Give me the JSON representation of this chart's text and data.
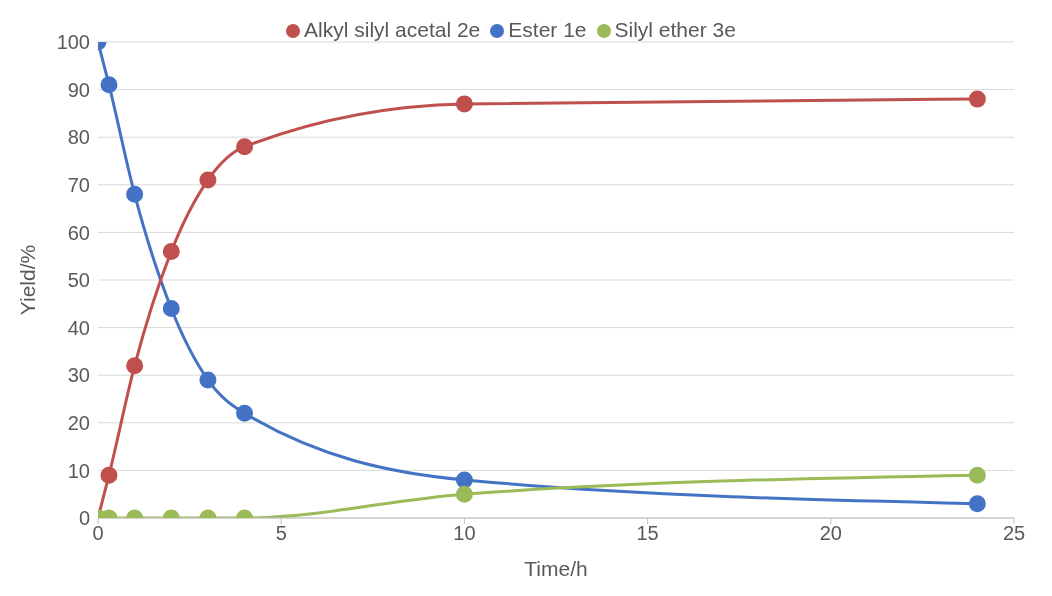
{
  "chart_data": {
    "type": "line",
    "xlabel": "Time/h",
    "ylabel": "Yield/%",
    "x": [
      0,
      0.3,
      1,
      2,
      3,
      4,
      10,
      24
    ],
    "series": [
      {
        "name": "Ester 1e",
        "color": "#4472c4",
        "values": [
          100,
          91,
          68,
          44,
          29,
          22,
          8,
          3
        ]
      },
      {
        "name": "Alkyl silyl acetal 2e",
        "color": "#c0504d",
        "values": [
          0,
          9,
          32,
          56,
          71,
          78,
          87,
          88
        ]
      },
      {
        "name": "Silyl ether 3e",
        "color": "#9bbb59",
        "values": [
          0,
          0,
          0,
          0,
          0,
          0,
          5,
          9
        ]
      }
    ],
    "xlim": [
      0,
      25
    ],
    "xticks": [
      0,
      5,
      10,
      15,
      20,
      25
    ],
    "ylim": [
      0,
      100
    ],
    "yticks": [
      0,
      10,
      20,
      30,
      40,
      50,
      60,
      70,
      80,
      90,
      100
    ],
    "grid": "y",
    "legend": "top",
    "marker": "circle",
    "line_style": "solid"
  }
}
